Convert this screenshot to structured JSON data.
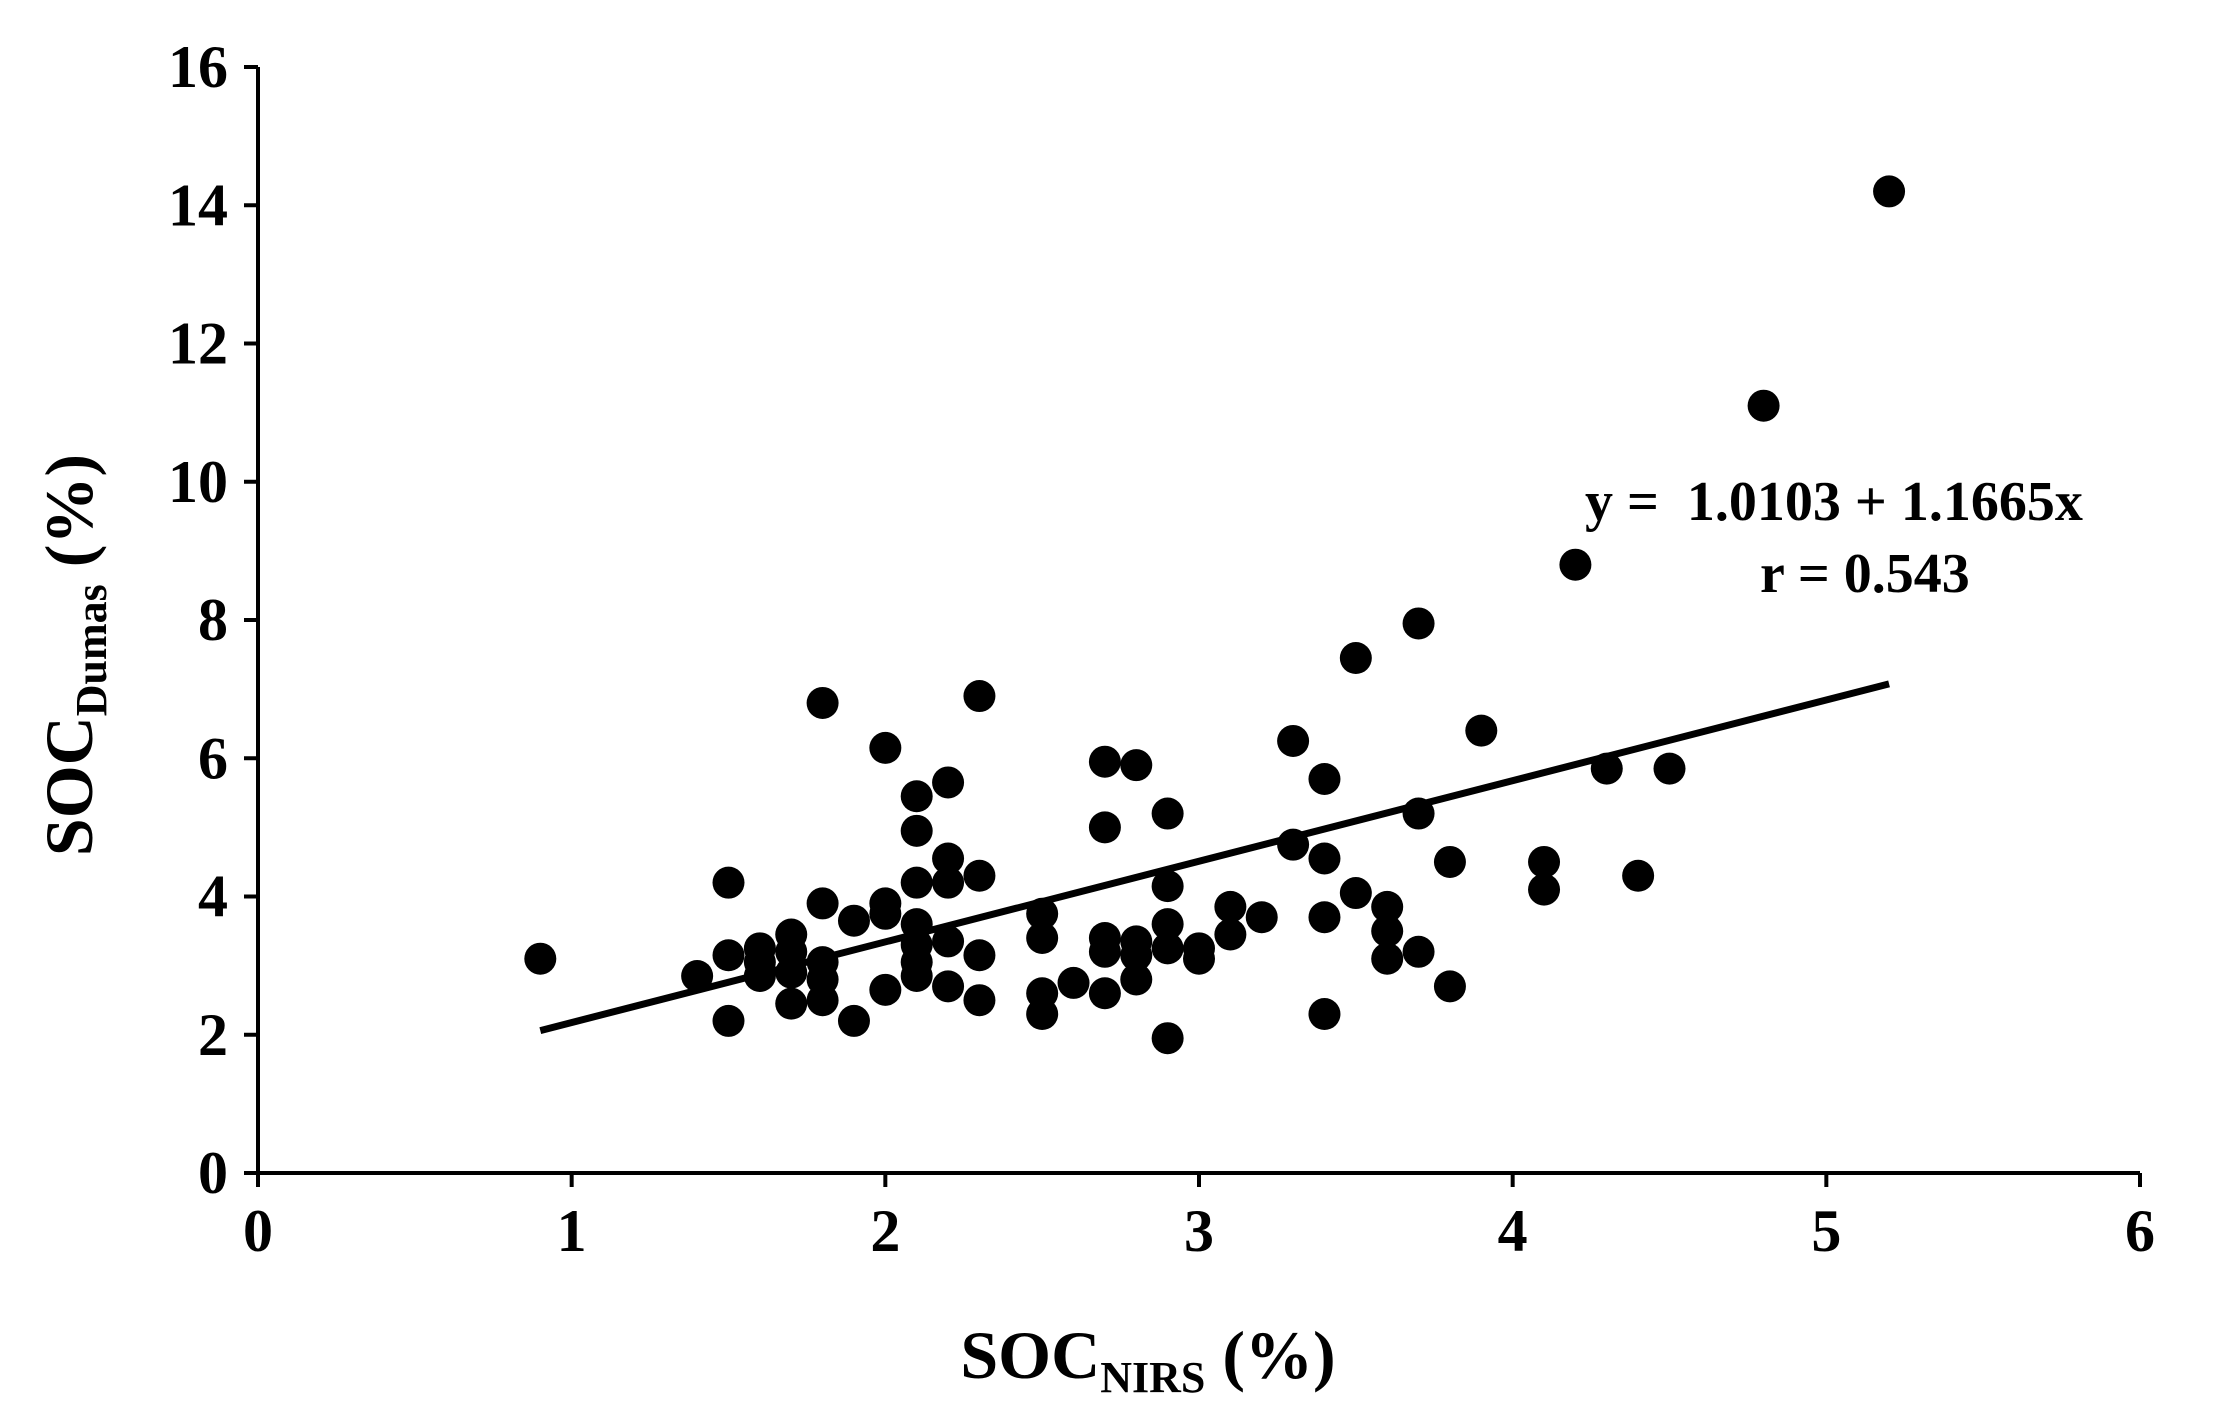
{
  "chart_data": {
    "type": "scatter",
    "title": "",
    "xlabel": {
      "main": "SOC",
      "sub": "NIRS",
      "suffix": " (%)"
    },
    "ylabel": {
      "main": "SOC",
      "sub": "Dumas",
      "suffix": " (%)"
    },
    "xlim": [
      0,
      6
    ],
    "ylim": [
      0,
      16
    ],
    "xticks": [
      0,
      1,
      2,
      3,
      4,
      5,
      6
    ],
    "yticks": [
      0,
      2,
      4,
      6,
      8,
      10,
      12,
      14,
      16
    ],
    "grid": false,
    "legend": "none",
    "color": "#000000",
    "regression": {
      "intercept": 1.0103,
      "slope": 1.1665,
      "x_range": [
        0.9,
        5.2
      ],
      "equation_label": "y =  1.0103 + 1.1665x",
      "r_label": "r = 0.543"
    },
    "points": [
      [
        0.9,
        3.1
      ],
      [
        1.4,
        2.85
      ],
      [
        1.5,
        4.2
      ],
      [
        1.5,
        3.15
      ],
      [
        1.5,
        2.2
      ],
      [
        1.6,
        3.25
      ],
      [
        1.6,
        3.05
      ],
      [
        1.6,
        2.85
      ],
      [
        1.7,
        3.45
      ],
      [
        1.7,
        3.2
      ],
      [
        1.7,
        2.9
      ],
      [
        1.7,
        2.45
      ],
      [
        1.8,
        6.8
      ],
      [
        1.8,
        3.9
      ],
      [
        1.8,
        3.05
      ],
      [
        1.8,
        2.8
      ],
      [
        1.8,
        2.5
      ],
      [
        1.9,
        3.65
      ],
      [
        1.9,
        2.2
      ],
      [
        2.0,
        6.15
      ],
      [
        2.0,
        3.9
      ],
      [
        2.0,
        3.75
      ],
      [
        2.0,
        2.65
      ],
      [
        2.1,
        5.45
      ],
      [
        2.1,
        4.95
      ],
      [
        2.1,
        4.2
      ],
      [
        2.1,
        3.6
      ],
      [
        2.1,
        3.3
      ],
      [
        2.1,
        3.05
      ],
      [
        2.1,
        2.85
      ],
      [
        2.2,
        5.65
      ],
      [
        2.2,
        4.55
      ],
      [
        2.2,
        4.2
      ],
      [
        2.2,
        3.35
      ],
      [
        2.2,
        2.7
      ],
      [
        2.3,
        6.9
      ],
      [
        2.3,
        4.3
      ],
      [
        2.3,
        3.15
      ],
      [
        2.3,
        2.5
      ],
      [
        2.5,
        3.75
      ],
      [
        2.5,
        3.4
      ],
      [
        2.5,
        2.6
      ],
      [
        2.5,
        2.3
      ],
      [
        2.6,
        2.75
      ],
      [
        2.7,
        5.95
      ],
      [
        2.7,
        5.0
      ],
      [
        2.7,
        3.4
      ],
      [
        2.7,
        3.2
      ],
      [
        2.7,
        2.6
      ],
      [
        2.8,
        5.9
      ],
      [
        2.8,
        3.35
      ],
      [
        2.8,
        3.15
      ],
      [
        2.8,
        2.8
      ],
      [
        2.9,
        5.2
      ],
      [
        2.9,
        4.15
      ],
      [
        2.9,
        3.6
      ],
      [
        2.9,
        3.25
      ],
      [
        2.9,
        1.95
      ],
      [
        3.0,
        3.25
      ],
      [
        3.0,
        3.1
      ],
      [
        3.1,
        3.85
      ],
      [
        3.1,
        3.45
      ],
      [
        3.2,
        3.7
      ],
      [
        3.3,
        6.25
      ],
      [
        3.3,
        4.75
      ],
      [
        3.4,
        5.7
      ],
      [
        3.4,
        4.55
      ],
      [
        3.4,
        3.7
      ],
      [
        3.4,
        2.3
      ],
      [
        3.5,
        7.45
      ],
      [
        3.5,
        4.05
      ],
      [
        3.6,
        3.85
      ],
      [
        3.6,
        3.5
      ],
      [
        3.6,
        3.1
      ],
      [
        3.7,
        7.95
      ],
      [
        3.7,
        5.2
      ],
      [
        3.7,
        3.2
      ],
      [
        3.8,
        4.5
      ],
      [
        3.8,
        2.7
      ],
      [
        3.9,
        6.4
      ],
      [
        4.1,
        4.5
      ],
      [
        4.1,
        4.1
      ],
      [
        4.2,
        8.8
      ],
      [
        4.3,
        5.85
      ],
      [
        4.4,
        4.3
      ],
      [
        4.5,
        5.85
      ],
      [
        4.8,
        11.1
      ],
      [
        5.2,
        14.2
      ]
    ]
  }
}
